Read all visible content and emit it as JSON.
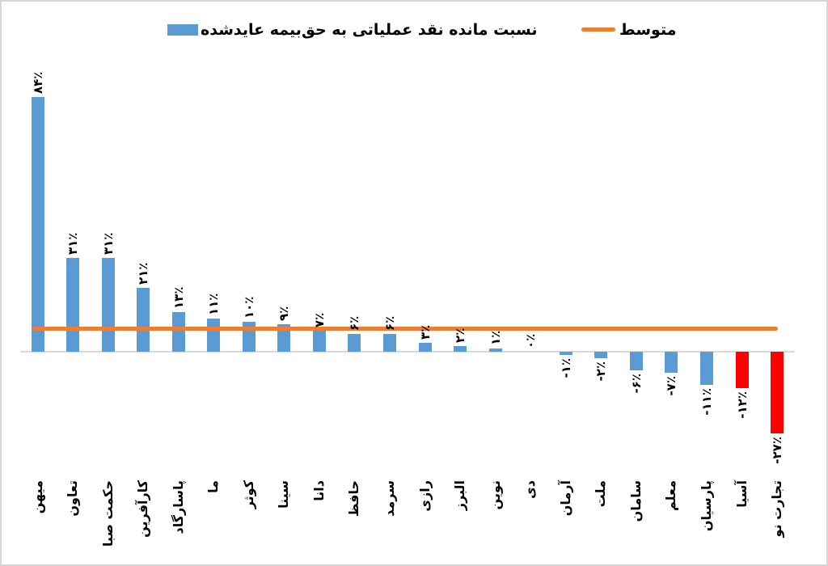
{
  "legend": {
    "series_label": "نسبت مانده نقد عملیاتی به حق‌بیمه عایدشده",
    "average_label": "متوسط"
  },
  "colors": {
    "bar_default": "#5B9BD5",
    "bar_highlight_negative": "#FF0000",
    "average_line": "#ED7D31",
    "axis_line": "#D9D9D9",
    "label_text": "#000000",
    "frame_border": "#D6D6D6"
  },
  "chart_data": {
    "type": "bar",
    "title": "",
    "series_name": "نسبت مانده نقد عملیاتی به حق‌بیمه عایدشده",
    "average_series_name": "متوسط",
    "unit": "%",
    "categories": [
      "میهن",
      "تعاون",
      "حکمت صبا",
      "کارآفرین",
      "پاسارگاد",
      "ما",
      "کوثر",
      "سینا",
      "دانا",
      "حافظ",
      "سرمد",
      "رازی",
      "البرز",
      "نوین",
      "دی",
      "آرمان",
      "ملت",
      "سامان",
      "معلم",
      "پارسیان",
      "آسیا",
      "تجارت نو"
    ],
    "values": [
      84,
      31,
      31,
      21,
      13,
      11,
      10,
      9,
      7,
      6,
      6,
      3,
      2,
      1,
      0,
      -1,
      -2,
      -6,
      -7,
      -11,
      -12,
      -27
    ],
    "value_labels": [
      "۸۴٪",
      "۳۱٪",
      "۳۱٪",
      "۲۱٪",
      "۱۳٪",
      "۱۱٪",
      "۱۰٪",
      "۹٪",
      "۷٪",
      "۶٪",
      "۶٪",
      "۳٪",
      "۲٪",
      "۱٪",
      "۰٪",
      "-۱٪",
      "-۲٪",
      "-۶٪",
      "-۷٪",
      "-۱۱٪",
      "-۱۲٪",
      "-۲۷٪"
    ],
    "bar_colors": [
      "#5B9BD5",
      "#5B9BD5",
      "#5B9BD5",
      "#5B9BD5",
      "#5B9BD5",
      "#5B9BD5",
      "#5B9BD5",
      "#5B9BD5",
      "#5B9BD5",
      "#5B9BD5",
      "#5B9BD5",
      "#5B9BD5",
      "#5B9BD5",
      "#5B9BD5",
      "#5B9BD5",
      "#5B9BD5",
      "#5B9BD5",
      "#5B9BD5",
      "#5B9BD5",
      "#5B9BD5",
      "#FF0000",
      "#FF0000"
    ],
    "average_value": 7.7,
    "ylim": [
      -30,
      90
    ],
    "grid": false,
    "legend_position": "top",
    "bar_label_rotation": -90,
    "category_label_rotation": -90
  }
}
